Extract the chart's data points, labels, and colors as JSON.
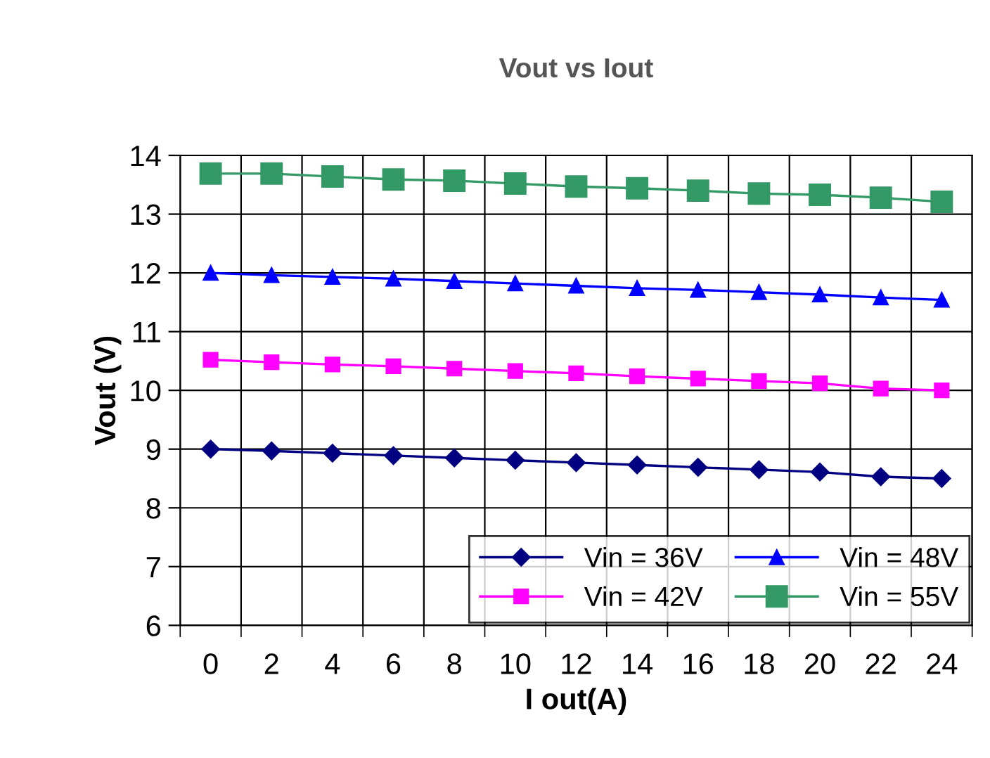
{
  "chart_data": {
    "type": "line",
    "title": "Vout vs Iout",
    "xlabel": "I out(A)",
    "ylabel": "Vout (V)",
    "categories": [
      "0",
      "2",
      "4",
      "6",
      "8",
      "10",
      "12",
      "14",
      "16",
      "18",
      "20",
      "22",
      "24"
    ],
    "series": [
      {
        "name": "Vin = 36V",
        "color": "#000080",
        "marker": "diamond",
        "values": [
          9.0,
          8.97,
          8.93,
          8.89,
          8.85,
          8.81,
          8.77,
          8.73,
          8.69,
          8.65,
          8.61,
          8.53,
          8.5
        ]
      },
      {
        "name": "Vin = 42V",
        "color": "#ff00ff",
        "marker": "square",
        "values": [
          10.52,
          10.48,
          10.44,
          10.41,
          10.37,
          10.33,
          10.29,
          10.24,
          10.2,
          10.16,
          10.12,
          10.03,
          10.0
        ]
      },
      {
        "name": "Vin = 48V",
        "color": "#0000ff",
        "marker": "triangle",
        "values": [
          12.0,
          11.96,
          11.93,
          11.9,
          11.86,
          11.82,
          11.78,
          11.74,
          11.71,
          11.67,
          11.63,
          11.58,
          11.54
        ]
      },
      {
        "name": "Vin = 55V",
        "color": "#339966",
        "marker": "square",
        "values": [
          13.69,
          13.69,
          13.64,
          13.59,
          13.57,
          13.52,
          13.47,
          13.44,
          13.4,
          13.35,
          13.33,
          13.28,
          13.21
        ]
      }
    ],
    "ylim": [
      6,
      14
    ],
    "yticks": [
      6,
      7,
      8,
      9,
      10,
      11,
      12,
      13,
      14
    ],
    "grid": true,
    "legend": "bottom right",
    "line_style": "solid"
  }
}
